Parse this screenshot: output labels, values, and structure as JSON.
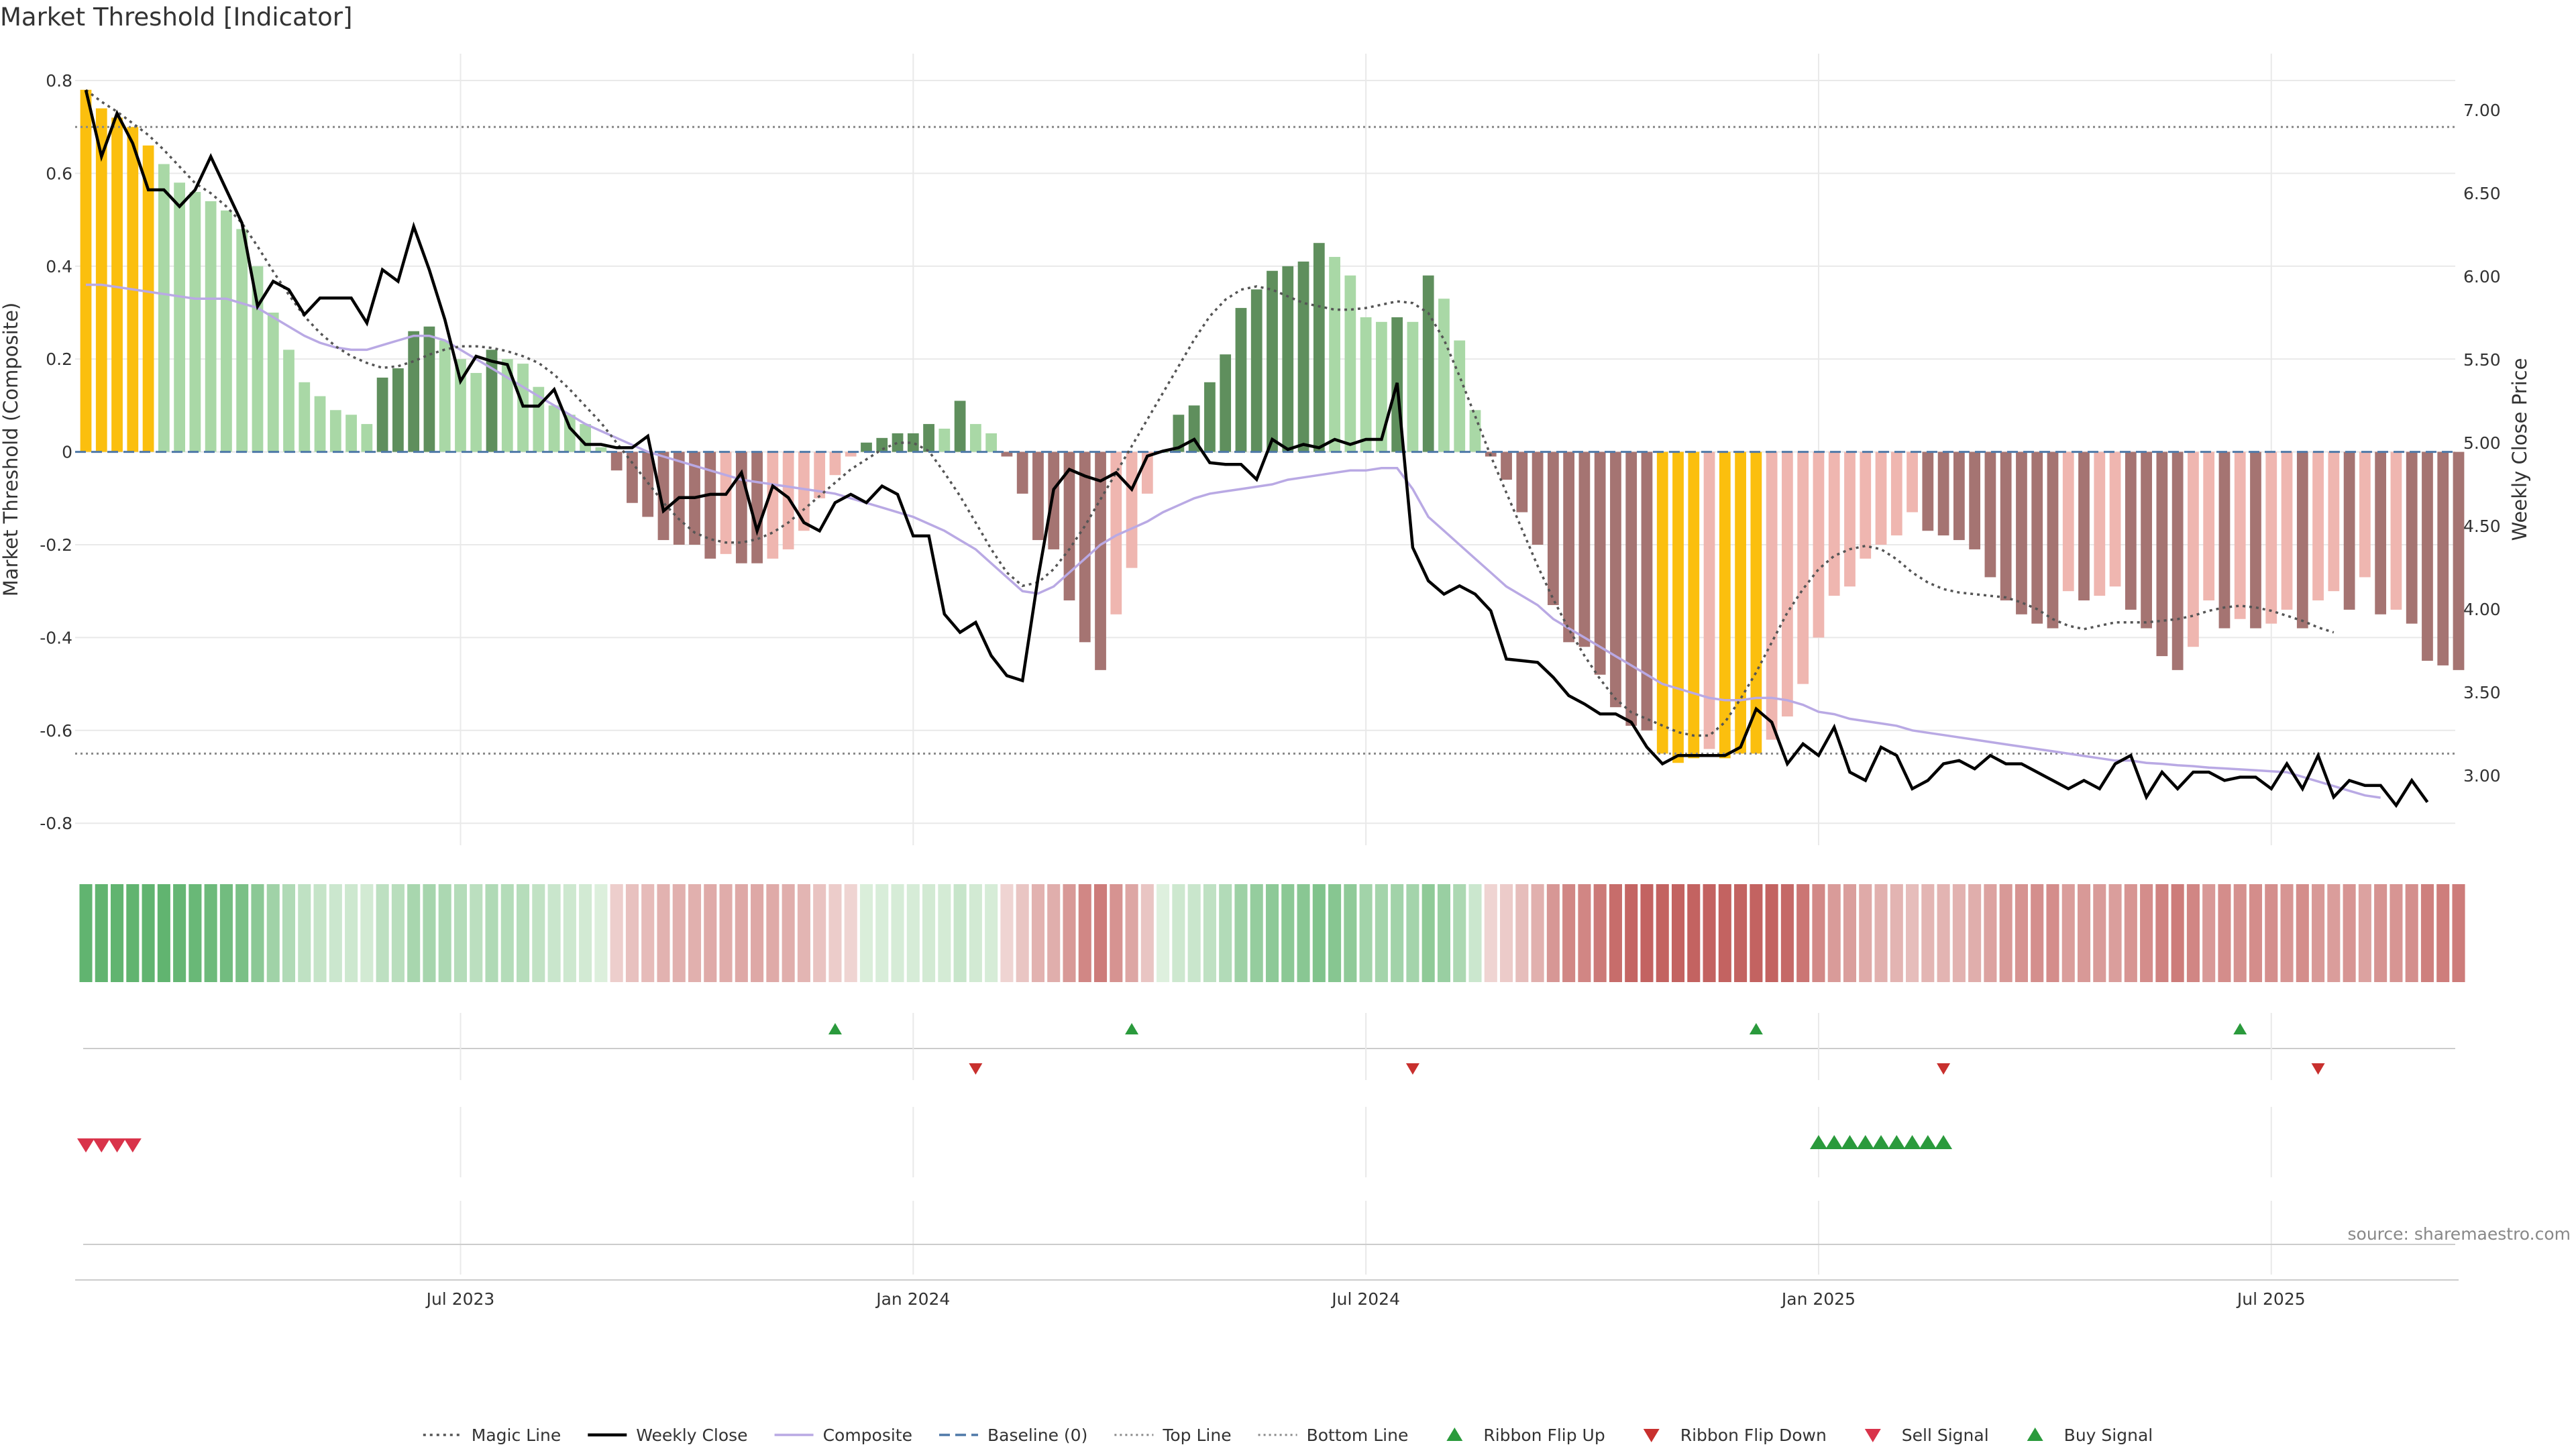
{
  "chart_data": {
    "type": "bar",
    "title": "Market Threshold [Indicator]",
    "ylabel_left": "Market Threshold (Composite)",
    "ylabel_right": "Weekly Close Price",
    "ylim_left": [
      -0.84,
      0.8
    ],
    "ylim_right": [
      2.67,
      7.3
    ],
    "left_ticks": [
      "0.8",
      "0.6",
      "0.4",
      "0.2",
      "0",
      "-0.2",
      "-0.4",
      "-0.6",
      "-0.8"
    ],
    "right_ticks": [
      "7.00",
      "6.50",
      "6.00",
      "5.50",
      "5.00",
      "4.50",
      "4.00",
      "3.50",
      "3.00"
    ],
    "x_ticks": [
      {
        "index": 24,
        "label": "Jul 2023"
      },
      {
        "index": 53,
        "label": "Jan 2024"
      },
      {
        "index": 82,
        "label": "Jul 2024"
      },
      {
        "index": 111,
        "label": "Jan 2025"
      },
      {
        "index": 140,
        "label": "Jul 2025"
      }
    ],
    "magic_line_top": 0.7,
    "magic_line_bottom": -0.65,
    "baseline": 0,
    "composite_bars": [
      0.78,
      0.74,
      0.72,
      0.7,
      0.66,
      0.62,
      0.58,
      0.56,
      0.54,
      0.52,
      0.48,
      0.4,
      0.3,
      0.22,
      0.15,
      0.12,
      0.09,
      0.08,
      0.06,
      0.16,
      0.18,
      0.26,
      0.27,
      0.24,
      0.2,
      0.17,
      0.22,
      0.2,
      0.19,
      0.14,
      0.1,
      0.08,
      0.06,
      0.01,
      -0.04,
      -0.11,
      -0.14,
      -0.19,
      -0.2,
      -0.2,
      -0.23,
      -0.22,
      -0.24,
      -0.24,
      -0.23,
      -0.21,
      -0.17,
      -0.1,
      -0.05,
      -0.01,
      0.02,
      0.03,
      0.04,
      0.04,
      0.06,
      0.05,
      0.11,
      0.06,
      0.04,
      -0.01,
      -0.09,
      -0.19,
      -0.21,
      -0.32,
      -0.41,
      -0.47,
      -0.35,
      -0.25,
      -0.09,
      0.0,
      0.08,
      0.1,
      0.15,
      0.21,
      0.31,
      0.35,
      0.39,
      0.4,
      0.41,
      0.45,
      0.42,
      0.38,
      0.29,
      0.28,
      0.29,
      0.28,
      0.38,
      0.33,
      0.24,
      0.09,
      -0.01,
      -0.06,
      -0.13,
      -0.2,
      -0.33,
      -0.41,
      -0.42,
      -0.48,
      -0.55,
      -0.59,
      -0.6,
      -0.65,
      -0.67,
      -0.66,
      -0.64,
      -0.66,
      -0.65,
      -0.65,
      -0.62,
      -0.57,
      -0.5,
      -0.4,
      -0.31,
      -0.29,
      -0.23,
      -0.2,
      -0.18,
      -0.13,
      -0.17,
      -0.18,
      -0.19,
      -0.21,
      -0.27,
      -0.32,
      -0.35,
      -0.37,
      -0.38,
      -0.3,
      -0.32,
      -0.31,
      -0.29,
      -0.34,
      -0.38,
      -0.44,
      -0.47,
      -0.42,
      -0.32,
      -0.38,
      -0.36,
      -0.38,
      -0.37,
      -0.34,
      -0.38,
      -0.32,
      -0.3,
      -0.34,
      -0.27,
      -0.35,
      -0.34,
      -0.37,
      -0.45,
      -0.46,
      -0.47
    ],
    "weekly_close": [
      7.12,
      6.72,
      6.98,
      6.8,
      6.52,
      6.52,
      6.42,
      6.52,
      6.72,
      6.52,
      6.32,
      5.82,
      5.97,
      5.92,
      5.77,
      5.87,
      5.87,
      5.87,
      5.72,
      6.04,
      5.97,
      6.3,
      6.04,
      5.74,
      5.37,
      5.52,
      5.49,
      5.47,
      5.22,
      5.22,
      5.32,
      5.09,
      4.99,
      4.99,
      4.97,
      4.97,
      5.04,
      4.59,
      4.67,
      4.67,
      4.69,
      4.69,
      4.82,
      4.47,
      4.74,
      4.67,
      4.52,
      4.47,
      4.64,
      4.69,
      4.64,
      4.74,
      4.69,
      4.44,
      4.44,
      3.97,
      3.86,
      3.92,
      3.72,
      3.6,
      3.57,
      4.19,
      4.72,
      4.84,
      4.8,
      4.77,
      4.82,
      4.72,
      4.92,
      4.95,
      4.97,
      5.02,
      4.88,
      4.87,
      4.87,
      4.78,
      5.02,
      4.96,
      4.99,
      4.97,
      5.02,
      4.99,
      5.02,
      5.02,
      5.36,
      4.37,
      4.17,
      4.09,
      4.14,
      4.09,
      3.99,
      3.7,
      3.69,
      3.68,
      3.59,
      3.48,
      3.43,
      3.37,
      3.37,
      3.32,
      3.17,
      3.07,
      3.12,
      3.12,
      3.12,
      3.12,
      3.17,
      3.4,
      3.32,
      3.07,
      3.19,
      3.12,
      3.29,
      3.02,
      2.97,
      3.17,
      3.12,
      2.92,
      2.97,
      3.07,
      3.09,
      3.04,
      3.12,
      3.07,
      3.07,
      3.02,
      2.97,
      2.92,
      2.97,
      2.92,
      3.07,
      3.12,
      2.87,
      3.02,
      2.92,
      3.02,
      3.02,
      2.97,
      2.99,
      2.99,
      2.92,
      3.07,
      2.92,
      3.12,
      2.87,
      2.97,
      2.94,
      2.94,
      2.82,
      2.97,
      2.84
    ],
    "magic_line": [
      7.12,
      7.05,
      6.99,
      6.92,
      6.85,
      6.76,
      6.66,
      6.56,
      6.5,
      6.42,
      6.32,
      6.18,
      6.03,
      5.89,
      5.76,
      5.66,
      5.58,
      5.52,
      5.48,
      5.45,
      5.46,
      5.49,
      5.53,
      5.56,
      5.58,
      5.58,
      5.57,
      5.55,
      5.52,
      5.48,
      5.41,
      5.32,
      5.22,
      5.12,
      5.0,
      4.88,
      4.76,
      4.64,
      4.54,
      4.46,
      4.42,
      4.4,
      4.4,
      4.42,
      4.46,
      4.52,
      4.6,
      4.68,
      4.76,
      4.84,
      4.9,
      4.96,
      5.0,
      5.0,
      4.95,
      4.82,
      4.68,
      4.52,
      4.36,
      4.22,
      4.14,
      4.16,
      4.24,
      4.36,
      4.5,
      4.66,
      4.82,
      4.98,
      5.14,
      5.3,
      5.46,
      5.62,
      5.76,
      5.86,
      5.92,
      5.94,
      5.92,
      5.88,
      5.84,
      5.82,
      5.8,
      5.8,
      5.81,
      5.83,
      5.85,
      5.84,
      5.78,
      5.62,
      5.4,
      5.16,
      4.92,
      4.7,
      4.48,
      4.26,
      4.06,
      3.88,
      3.72,
      3.58,
      3.46,
      3.38,
      3.34,
      3.3,
      3.26,
      3.24,
      3.24,
      3.32,
      3.46,
      3.62,
      3.8,
      3.98,
      4.12,
      4.24,
      4.32,
      4.36,
      4.38,
      4.36,
      4.3,
      4.22,
      4.16,
      4.12,
      4.1,
      4.09,
      4.08,
      4.07,
      4.04,
      4.0,
      3.94,
      3.9,
      3.88,
      3.9,
      3.92,
      3.92,
      3.92,
      3.93,
      3.94,
      3.96,
      3.99,
      4.01,
      4.02,
      4.01,
      3.99,
      3.96,
      3.93,
      3.89,
      3.86
    ],
    "composite_smooth": [
      0.36,
      0.36,
      0.355,
      0.35,
      0.345,
      0.34,
      0.335,
      0.33,
      0.33,
      0.33,
      0.32,
      0.31,
      0.29,
      0.27,
      0.25,
      0.235,
      0.225,
      0.22,
      0.22,
      0.23,
      0.24,
      0.25,
      0.25,
      0.24,
      0.22,
      0.2,
      0.18,
      0.16,
      0.14,
      0.12,
      0.1,
      0.08,
      0.06,
      0.045,
      0.03,
      0.015,
      0.0,
      -0.01,
      -0.02,
      -0.03,
      -0.04,
      -0.05,
      -0.06,
      -0.065,
      -0.07,
      -0.075,
      -0.08,
      -0.085,
      -0.09,
      -0.1,
      -0.11,
      -0.12,
      -0.13,
      -0.14,
      -0.155,
      -0.17,
      -0.19,
      -0.21,
      -0.24,
      -0.27,
      -0.3,
      -0.305,
      -0.29,
      -0.26,
      -0.23,
      -0.2,
      -0.18,
      -0.165,
      -0.15,
      -0.13,
      -0.115,
      -0.1,
      -0.09,
      -0.085,
      -0.08,
      -0.075,
      -0.07,
      -0.06,
      -0.055,
      -0.05,
      -0.045,
      -0.04,
      -0.04,
      -0.035,
      -0.035,
      -0.08,
      -0.14,
      -0.17,
      -0.2,
      -0.23,
      -0.26,
      -0.29,
      -0.31,
      -0.33,
      -0.36,
      -0.38,
      -0.4,
      -0.42,
      -0.44,
      -0.46,
      -0.48,
      -0.5,
      -0.51,
      -0.52,
      -0.53,
      -0.535,
      -0.535,
      -0.53,
      -0.53,
      -0.535,
      -0.545,
      -0.56,
      -0.565,
      -0.575,
      -0.58,
      -0.585,
      -0.59,
      -0.6,
      -0.605,
      -0.61,
      -0.615,
      -0.62,
      -0.625,
      -0.63,
      -0.635,
      -0.64,
      -0.645,
      -0.65,
      -0.655,
      -0.66,
      -0.665,
      -0.665,
      -0.67,
      -0.672,
      -0.675,
      -0.677,
      -0.68,
      -0.682,
      -0.684,
      -0.686,
      -0.688,
      -0.69,
      -0.7,
      -0.71,
      -0.72,
      -0.73,
      -0.74,
      -0.745
    ],
    "buy_signals": [
      111,
      112,
      113,
      114,
      115,
      116,
      117,
      118,
      119
    ],
    "sell_signals": [
      0,
      1,
      2,
      3
    ],
    "ribbon_flip_up": [
      48,
      67,
      107,
      138
    ],
    "ribbon_flip_down": [
      57,
      85,
      119,
      143
    ],
    "legend": [
      {
        "label": "Magic Line",
        "color": "#555555"
      },
      {
        "label": "Weekly Close",
        "color": "#000000"
      },
      {
        "label": "Composite",
        "color": "#b9a9e4"
      },
      {
        "label": "Baseline (0)",
        "color": "#4f79a8"
      },
      {
        "label": "Top Line",
        "color": "#888888"
      },
      {
        "label": "Bottom Line",
        "color": "#888888"
      },
      {
        "label": "Ribbon Flip Up",
        "color": "#2a9a3c"
      },
      {
        "label": "Ribbon Flip Down",
        "color": "#c8302e"
      },
      {
        "label": "Sell Signal",
        "color": "#d9334a"
      },
      {
        "label": "Buy Signal",
        "color": "#2a9a3c"
      }
    ],
    "colors": {
      "yellow": "#fbbf0e",
      "light_green": "#a9d8a6",
      "dark_green": "#5f8f5d",
      "light_red": "#efb6b0",
      "dark_red": "#a57472",
      "grid": "#e9e9e9"
    },
    "source": "source: sharemaestro.com"
  }
}
